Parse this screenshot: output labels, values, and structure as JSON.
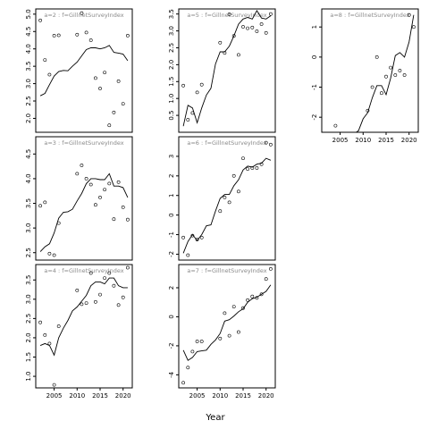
{
  "chart_data": {
    "xlabel": "Year",
    "panels": [
      {
        "title": "a=2 : f=GillnetSurveyIndex",
        "type": "scatter+line",
        "xlim": [
          2001,
          2022
        ],
        "ylim": [
          1.6,
          5.15
        ],
        "yticks": [
          2.0,
          2.5,
          3.0,
          3.5,
          4.0,
          4.5,
          5.0
        ],
        "ytick_labels": [
          "2.0",
          "2.5",
          "3.0",
          "3.5",
          "4.0",
          "4.5",
          "5.0"
        ],
        "xticks": [],
        "xtick_labels": [],
        "observed": {
          "x": [
            2002,
            2003,
            2004,
            2005,
            2006,
            2010,
            2011,
            2012,
            2013,
            2014,
            2015,
            2016,
            2017,
            2018,
            2019,
            2020,
            2021
          ],
          "y": [
            4.82,
            3.68,
            3.26,
            4.38,
            4.39,
            4.41,
            5.03,
            4.47,
            4.25,
            3.16,
            2.86,
            3.32,
            1.8,
            2.17,
            3.07,
            2.42,
            4.38
          ]
        },
        "fitted": {
          "x": [
            2002,
            2003,
            2004,
            2005,
            2006,
            2007,
            2008,
            2009,
            2010,
            2011,
            2012,
            2013,
            2014,
            2015,
            2016,
            2017,
            2018,
            2019,
            2020,
            2021
          ],
          "y": [
            2.65,
            2.72,
            2.97,
            3.22,
            3.35,
            3.38,
            3.37,
            3.5,
            3.62,
            3.8,
            3.98,
            4.03,
            4.03,
            4.0,
            4.03,
            4.1,
            3.9,
            3.88,
            3.85,
            3.66
          ]
        }
      },
      {
        "title": "a=3 : f=GillnetSurveyIndex",
        "type": "scatter+line",
        "xlim": [
          2001,
          2022
        ],
        "ylim": [
          2.35,
          4.85
        ],
        "yticks": [
          2.5,
          3.0,
          3.5,
          4.0,
          4.5
        ],
        "ytick_labels": [
          "2.5",
          "3.0",
          "3.5",
          "4.0",
          "4.5"
        ],
        "xticks": [],
        "xtick_labels": [],
        "observed": {
          "x": [
            2002,
            2003,
            2004,
            2005,
            2006,
            2010,
            2011,
            2012,
            2013,
            2014,
            2015,
            2016,
            2017,
            2018,
            2019,
            2020,
            2021
          ],
          "y": [
            3.45,
            3.52,
            2.48,
            2.45,
            3.1,
            4.1,
            4.27,
            4.0,
            3.88,
            3.47,
            3.62,
            3.78,
            3.9,
            3.18,
            3.93,
            3.42,
            3.17
          ]
        },
        "fitted": {
          "x": [
            2002,
            2003,
            2004,
            2005,
            2006,
            2007,
            2008,
            2009,
            2010,
            2011,
            2012,
            2013,
            2014,
            2015,
            2016,
            2017,
            2018,
            2019,
            2020,
            2021
          ],
          "y": [
            2.52,
            2.62,
            2.68,
            2.9,
            3.2,
            3.32,
            3.33,
            3.38,
            3.55,
            3.7,
            3.9,
            4.0,
            4.0,
            3.98,
            3.98,
            4.1,
            3.85,
            3.85,
            3.82,
            3.62
          ]
        }
      },
      {
        "title": "a=4 : f=GillnetSurveyIndex",
        "type": "scatter+line",
        "xlim": [
          2001,
          2022
        ],
        "ylim": [
          0.7,
          3.9
        ],
        "yticks": [
          1.0,
          1.5,
          2.0,
          2.5,
          3.0,
          3.5
        ],
        "ytick_labels": [
          "1.0",
          "1.5",
          "2.0",
          "2.5",
          "3.0",
          "3.5"
        ],
        "xticks": [
          2005,
          2010,
          2015,
          2020
        ],
        "xtick_labels": [
          "2005",
          "2010",
          "2015",
          "2020"
        ],
        "observed": {
          "x": [
            2002,
            2003,
            2004,
            2005,
            2006,
            2010,
            2011,
            2012,
            2013,
            2014,
            2015,
            2016,
            2017,
            2018,
            2019,
            2020,
            2021
          ],
          "y": [
            2.4,
            2.07,
            1.85,
            0.78,
            2.3,
            3.23,
            2.87,
            2.9,
            3.68,
            2.93,
            3.12,
            3.55,
            3.68,
            3.35,
            2.85,
            3.05,
            3.82
          ]
        },
        "fitted": {
          "x": [
            2002,
            2003,
            2004,
            2005,
            2006,
            2007,
            2008,
            2009,
            2010,
            2011,
            2012,
            2013,
            2014,
            2015,
            2016,
            2017,
            2018,
            2019,
            2020,
            2021
          ],
          "y": [
            1.8,
            1.85,
            1.8,
            1.55,
            2.0,
            2.25,
            2.45,
            2.7,
            2.8,
            2.95,
            3.1,
            3.35,
            3.45,
            3.45,
            3.4,
            3.55,
            3.55,
            3.35,
            3.3,
            3.3
          ]
        }
      },
      {
        "title": "a=5 : f=GillnetSurveyIndex",
        "type": "scatter+line",
        "xlim": [
          2001,
          2022
        ],
        "ylim": [
          0.0,
          3.65
        ],
        "yticks": [
          0.5,
          1.0,
          1.5,
          2.0,
          2.5,
          3.0,
          3.5
        ],
        "ytick_labels": [
          "0.5",
          "1.0",
          "1.5",
          "2.0",
          "2.5",
          "3.0",
          "3.5"
        ],
        "xticks": [],
        "xtick_labels": [],
        "observed": {
          "x": [
            2002,
            2003,
            2004,
            2005,
            2006,
            2010,
            2011,
            2012,
            2013,
            2014,
            2015,
            2016,
            2017,
            2018,
            2019,
            2020,
            2021
          ],
          "y": [
            1.38,
            0.37,
            0.57,
            1.18,
            1.41,
            2.65,
            2.35,
            3.49,
            2.85,
            2.29,
            3.12,
            3.08,
            3.1,
            2.99,
            3.2,
            2.94,
            3.5
          ]
        },
        "fitted": {
          "x": [
            2002,
            2003,
            2004,
            2005,
            2006,
            2007,
            2008,
            2009,
            2010,
            2011,
            2012,
            2013,
            2014,
            2015,
            2016,
            2017,
            2018,
            2019,
            2020,
            2021
          ],
          "y": [
            0.18,
            0.8,
            0.72,
            0.28,
            0.72,
            1.1,
            1.3,
            2.02,
            2.38,
            2.38,
            2.55,
            2.85,
            3.2,
            3.35,
            3.4,
            3.35,
            3.6,
            3.38,
            3.35,
            3.45
          ]
        }
      },
      {
        "title": "a=6 : f=GillnetSurveyIndex",
        "type": "scatter+line",
        "xlim": [
          2001,
          2022
        ],
        "ylim": [
          -2.3,
          4.0
        ],
        "yticks": [
          -2,
          -1,
          0,
          1,
          2,
          3
        ],
        "ytick_labels": [
          "-2",
          "-1",
          "0",
          "1",
          "2",
          "3"
        ],
        "xticks": [],
        "xtick_labels": [],
        "observed": {
          "x": [
            2002,
            2003,
            2004,
            2005,
            2006,
            2010,
            2011,
            2012,
            2013,
            2014,
            2015,
            2016,
            2017,
            2018,
            2019,
            2020,
            2021
          ],
          "y": [
            -1.15,
            -2.05,
            -1.05,
            -1.25,
            -1.15,
            0.2,
            0.9,
            0.65,
            2.0,
            1.2,
            2.9,
            2.35,
            2.4,
            2.4,
            2.6,
            3.7,
            3.6
          ]
        },
        "fitted": {
          "x": [
            2002,
            2003,
            2004,
            2005,
            2006,
            2007,
            2008,
            2009,
            2010,
            2011,
            2012,
            2013,
            2014,
            2015,
            2016,
            2017,
            2018,
            2019,
            2020,
            2021
          ],
          "y": [
            -1.95,
            -1.35,
            -1.0,
            -1.3,
            -1.0,
            -0.55,
            -0.5,
            0.2,
            0.85,
            1.05,
            1.05,
            1.5,
            1.8,
            2.3,
            2.5,
            2.45,
            2.6,
            2.65,
            2.9,
            2.8
          ]
        }
      },
      {
        "title": "a=7 : f=GillnetSurveyIndex",
        "type": "scatter+line",
        "xlim": [
          2001,
          2022
        ],
        "ylim": [
          -4.9,
          3.6
        ],
        "yticks": [
          -4,
          -2,
          0,
          2
        ],
        "ytick_labels": [
          "-4",
          "-2",
          "0",
          "2"
        ],
        "xticks": [
          2005,
          2010,
          2015,
          2020
        ],
        "xtick_labels": [
          "2005",
          "2010",
          "2015",
          "2020"
        ],
        "observed": {
          "x": [
            2002,
            2003,
            2004,
            2005,
            2006,
            2010,
            2011,
            2012,
            2013,
            2014,
            2015,
            2016,
            2017,
            2018,
            2019,
            2020,
            2021
          ],
          "y": [
            -4.55,
            -3.5,
            -2.4,
            -1.7,
            -1.7,
            -1.5,
            0.25,
            -1.3,
            0.7,
            -1.05,
            0.6,
            1.15,
            1.4,
            1.3,
            1.55,
            2.6,
            3.3
          ]
        },
        "fitted": {
          "x": [
            2002,
            2003,
            2004,
            2005,
            2006,
            2007,
            2008,
            2009,
            2010,
            2011,
            2012,
            2013,
            2014,
            2015,
            2016,
            2017,
            2018,
            2019,
            2020,
            2021
          ],
          "y": [
            -2.3,
            -3.0,
            -2.8,
            -2.4,
            -2.35,
            -2.3,
            -1.9,
            -1.6,
            -1.15,
            -0.3,
            -0.2,
            0.05,
            0.35,
            0.55,
            1.0,
            1.25,
            1.35,
            1.55,
            1.75,
            2.2
          ]
        }
      },
      {
        "title": "a=8 : f=GillnetSurveyIndex",
        "type": "scatter+line",
        "xlim": [
          2001,
          2022
        ],
        "ylim": [
          -2.5,
          1.6
        ],
        "yticks": [
          -2,
          -1,
          0,
          1
        ],
        "ytick_labels": [
          "-2",
          "-1",
          "0",
          "1"
        ],
        "xticks": [
          2005,
          2010,
          2015,
          2020
        ],
        "xtick_labels": [
          "2005",
          "2010",
          "2015",
          "2020"
        ],
        "observed": {
          "x": [
            2004,
            2011,
            2012,
            2013,
            2014,
            2015,
            2016,
            2017,
            2018,
            2019,
            2020,
            2021
          ],
          "y": [
            -2.28,
            -1.78,
            -1.0,
            0.0,
            -1.2,
            -0.65,
            -0.35,
            -0.6,
            -0.45,
            -0.6,
            1.4,
            1.0
          ]
        },
        "fitted": {
          "x": [
            2008,
            2009,
            2010,
            2011,
            2012,
            2013,
            2014,
            2015,
            2016,
            2017,
            2018,
            2019,
            2020,
            2021
          ],
          "y": [
            -2.55,
            -2.45,
            -2.05,
            -1.85,
            -1.35,
            -0.95,
            -0.95,
            -1.25,
            -0.7,
            0.05,
            0.15,
            0.0,
            0.5,
            1.4
          ]
        }
      }
    ]
  }
}
